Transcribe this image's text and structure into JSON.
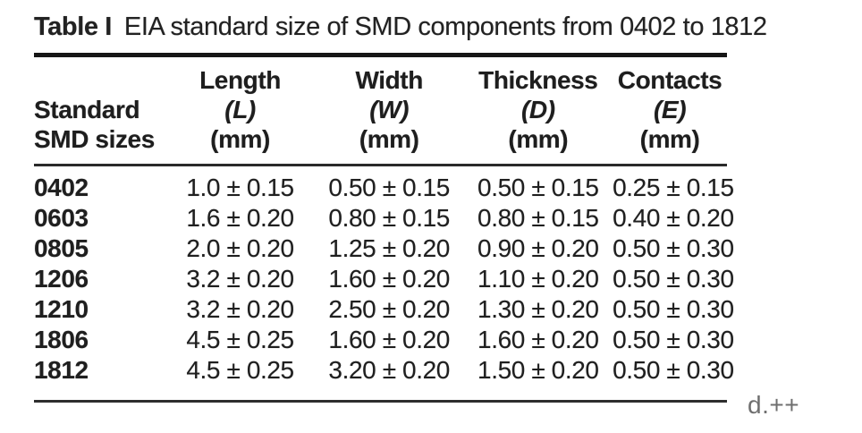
{
  "figure": {
    "table_label": "Table I",
    "caption": "EIA standard size of SMD components from 0402 to 1812"
  },
  "table": {
    "row_header": {
      "line1": "Standard",
      "line2": "SMD sizes"
    },
    "columns": [
      {
        "name": "Length",
        "symbol": "(L)",
        "unit": "(mm)"
      },
      {
        "name": "Width",
        "symbol": "(W)",
        "unit": "(mm)"
      },
      {
        "name": "Thickness",
        "symbol": "(D)",
        "unit": "(mm)"
      },
      {
        "name": "Contacts",
        "symbol": "(E)",
        "unit": "(mm)"
      }
    ],
    "rows": [
      {
        "size": "0402",
        "length": "1.0 ± 0.15",
        "width": "0.50 ± 0.15",
        "thickness": "0.50 ± 0.15",
        "contacts": "0.25 ± 0.15"
      },
      {
        "size": "0603",
        "length": "1.6 ± 0.20",
        "width": "0.80 ± 0.15",
        "thickness": "0.80 ± 0.15",
        "contacts": "0.40 ± 0.20"
      },
      {
        "size": "0805",
        "length": "2.0 ± 0.20",
        "width": "1.25 ± 0.20",
        "thickness": "0.90 ± 0.20",
        "contacts": "0.50 ± 0.30"
      },
      {
        "size": "1206",
        "length": "3.2 ± 0.20",
        "width": "1.60 ± 0.20",
        "thickness": "1.10 ± 0.20",
        "contacts": "0.50 ± 0.30"
      },
      {
        "size": "1210",
        "length": "3.2 ± 0.20",
        "width": "2.50 ± 0.20",
        "thickness": "1.30 ± 0.20",
        "contacts": "0.50 ± 0.30"
      },
      {
        "size": "1806",
        "length": "4.5 ± 0.25",
        "width": "1.60 ± 0.20",
        "thickness": "1.60 ± 0.20",
        "contacts": "0.50 ± 0.30"
      },
      {
        "size": "1812",
        "length": "4.5 ± 0.25",
        "width": "3.20 ± 0.20",
        "thickness": "1.50 ± 0.20",
        "contacts": "0.50 ± 0.30"
      }
    ]
  },
  "overlay": {
    "text": "d.++",
    "color": "#6f6f6f"
  },
  "colors": {
    "text": "#1e1e1e",
    "rule_heavy": "#161616",
    "rule_light": "#2a2a2a",
    "background": "#ffffff"
  }
}
